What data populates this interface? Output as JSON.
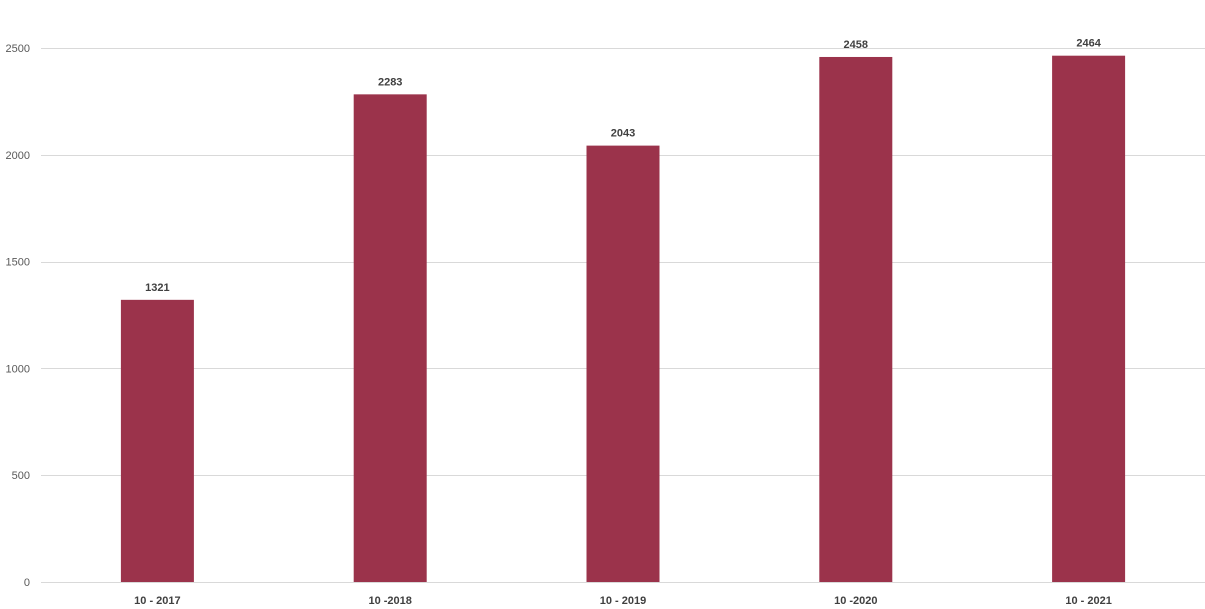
{
  "chart_data": {
    "type": "bar",
    "title": "",
    "xlabel": "",
    "ylabel": "",
    "categories": [
      "10 - 2017",
      "10 -2018",
      "10 - 2019",
      "10 -2020",
      "10 - 2021"
    ],
    "values": [
      1321,
      2283,
      2043,
      2458,
      2464
    ],
    "data_labels": [
      "1321",
      "2283",
      "2043",
      "2458",
      "2464"
    ],
    "ylim": [
      0,
      2500
    ],
    "yticks": [
      0,
      500,
      1000,
      1500,
      2000,
      2500
    ],
    "ytick_labels": [
      "0",
      "500",
      "1000",
      "1500",
      "2000",
      "2500"
    ],
    "grid": true,
    "legend": "none",
    "bar_color": "#9B334B"
  }
}
